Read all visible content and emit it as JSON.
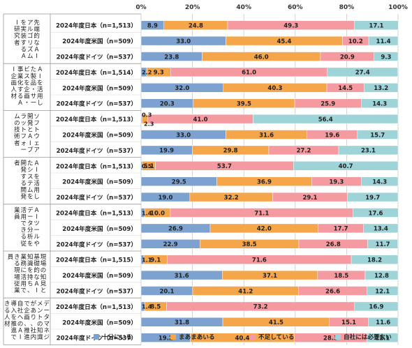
{
  "chart_data": {
    "type": "bar",
    "orientation": "horizontal",
    "stacked": true,
    "xlim": [
      0,
      100
    ],
    "x_ticks": [
      "0%",
      "20%",
      "40%",
      "60%",
      "80%",
      "100%"
    ],
    "legend_position": "bottom",
    "groups": [
      {
        "label": "先端的なAIアルゴリズムを実装するAI研究者",
        "rows": [
          {
            "label": "2024年度日本（n=1,513）",
            "values": [
              8.9,
              24.8,
              49.3,
              17.1
            ]
          },
          {
            "label": "2024年度米国（n=509）",
            "values": [
              33.0,
              45.4,
              10.2,
              11.4
            ]
          },
          {
            "label": "2024年度ドイツ（n=537）",
            "values": [
              23.8,
              46.0,
              20.9,
              9.3
            ]
          }
        ]
      },
      {
        "label": "AIを活用した製品・サービスを企画・事業化するAI企画人材",
        "rows": [
          {
            "label": "2024年度日本（n=1,514）",
            "values": [
              2.2,
              9.3,
              61.0,
              27.4
            ]
          },
          {
            "label": "2024年度米国（n=509）",
            "values": [
              32.0,
              40.3,
              14.5,
              13.2
            ]
          },
          {
            "label": "2024年度ドイツ（n=537）",
            "values": [
              20.3,
              39.5,
              25.9,
              14.3
            ]
          }
        ]
      },
      {
        "label": "ソフトウェア開発とAIプラットフォームの技術者",
        "rows": [
          {
            "label": "2024年度日本（n=1,513）",
            "values": [
              0.3,
              2.3,
              41.0,
              56.4
            ]
          },
          {
            "label": "2024年度米国（n=509）",
            "values": [
              33.0,
              31.6,
              19.6,
              15.7
            ]
          },
          {
            "label": "2024年度ドイツ（n=537）",
            "values": [
              19.9,
              29.8,
              27.2,
              23.1
            ]
          }
        ]
      },
      {
        "label": "AIを活用したシステムを開発する開発者",
        "rows": [
          {
            "label": "2024年度日本（n=1,513）",
            "values": [
              0.5,
              5.1,
              53.7,
              40.7
            ]
          },
          {
            "label": "2024年度米国（n=509）",
            "values": [
              29.5,
              36.9,
              19.3,
              14.3
            ]
          },
          {
            "label": "2024年度ドイツ（n=537）",
            "values": [
              19.0,
              32.2,
              29.1,
              19.7
            ]
          }
        ]
      },
      {
        "label": "AIツールやデータ分析を活用できる従業員",
        "rows": [
          {
            "label": "2024年度日本（n=1,513）",
            "values": [
              1.4,
              10.0,
              71.1,
              17.6
            ]
          },
          {
            "label": "2024年度米国（n=509）",
            "values": [
              26.9,
              42.0,
              17.7,
              13.4
            ]
          },
          {
            "label": "2024年度ドイツ（n=537）",
            "values": [
              22.9,
              38.5,
              26.8,
              11.7
            ]
          }
        ]
      },
      {
        "label": "現場の知見と基礎的なAI知識を持ち、業務に活用できる現場従業員",
        "rows": [
          {
            "label": "2024年度日本（n=1,515）",
            "values": [
              1.1,
              9.1,
              71.6,
              18.2
            ]
          },
          {
            "label": "2024年度米国（n=509）",
            "values": [
              31.6,
              37.1,
              18.5,
              12.8
            ]
          },
          {
            "label": "2024年度ドイツ（n=537）",
            "values": [
              20.1,
              41.2,
              26.6,
              12.1
            ]
          }
        ]
      },
      {
        "label": "データマネジメントの知識があり、社内で企画、推進自社へのAI導入を推進できる人材",
        "rows": [
          {
            "label": "2024年度日本（n=1,513）",
            "values": [
              1.4,
              8.5,
              73.2,
              16.9
            ]
          },
          {
            "label": "2024年度米国（n=509）",
            "values": [
              31.8,
              41.5,
              15.1,
              11.6
            ]
          },
          {
            "label": "2024年度ドイツ（n=537）",
            "values": [
              19.2,
              40.4,
              28.3,
              12.1
            ]
          }
        ]
      }
    ],
    "series": [
      {
        "name": "十分にいる",
        "color": "#7da2d0"
      },
      {
        "name": "まあまあいる",
        "color": "#f5a54a"
      },
      {
        "name": "不足している",
        "color": "#f59aa0"
      },
      {
        "name": "自社には必要ない",
        "color": "#9ed3d8"
      }
    ]
  }
}
